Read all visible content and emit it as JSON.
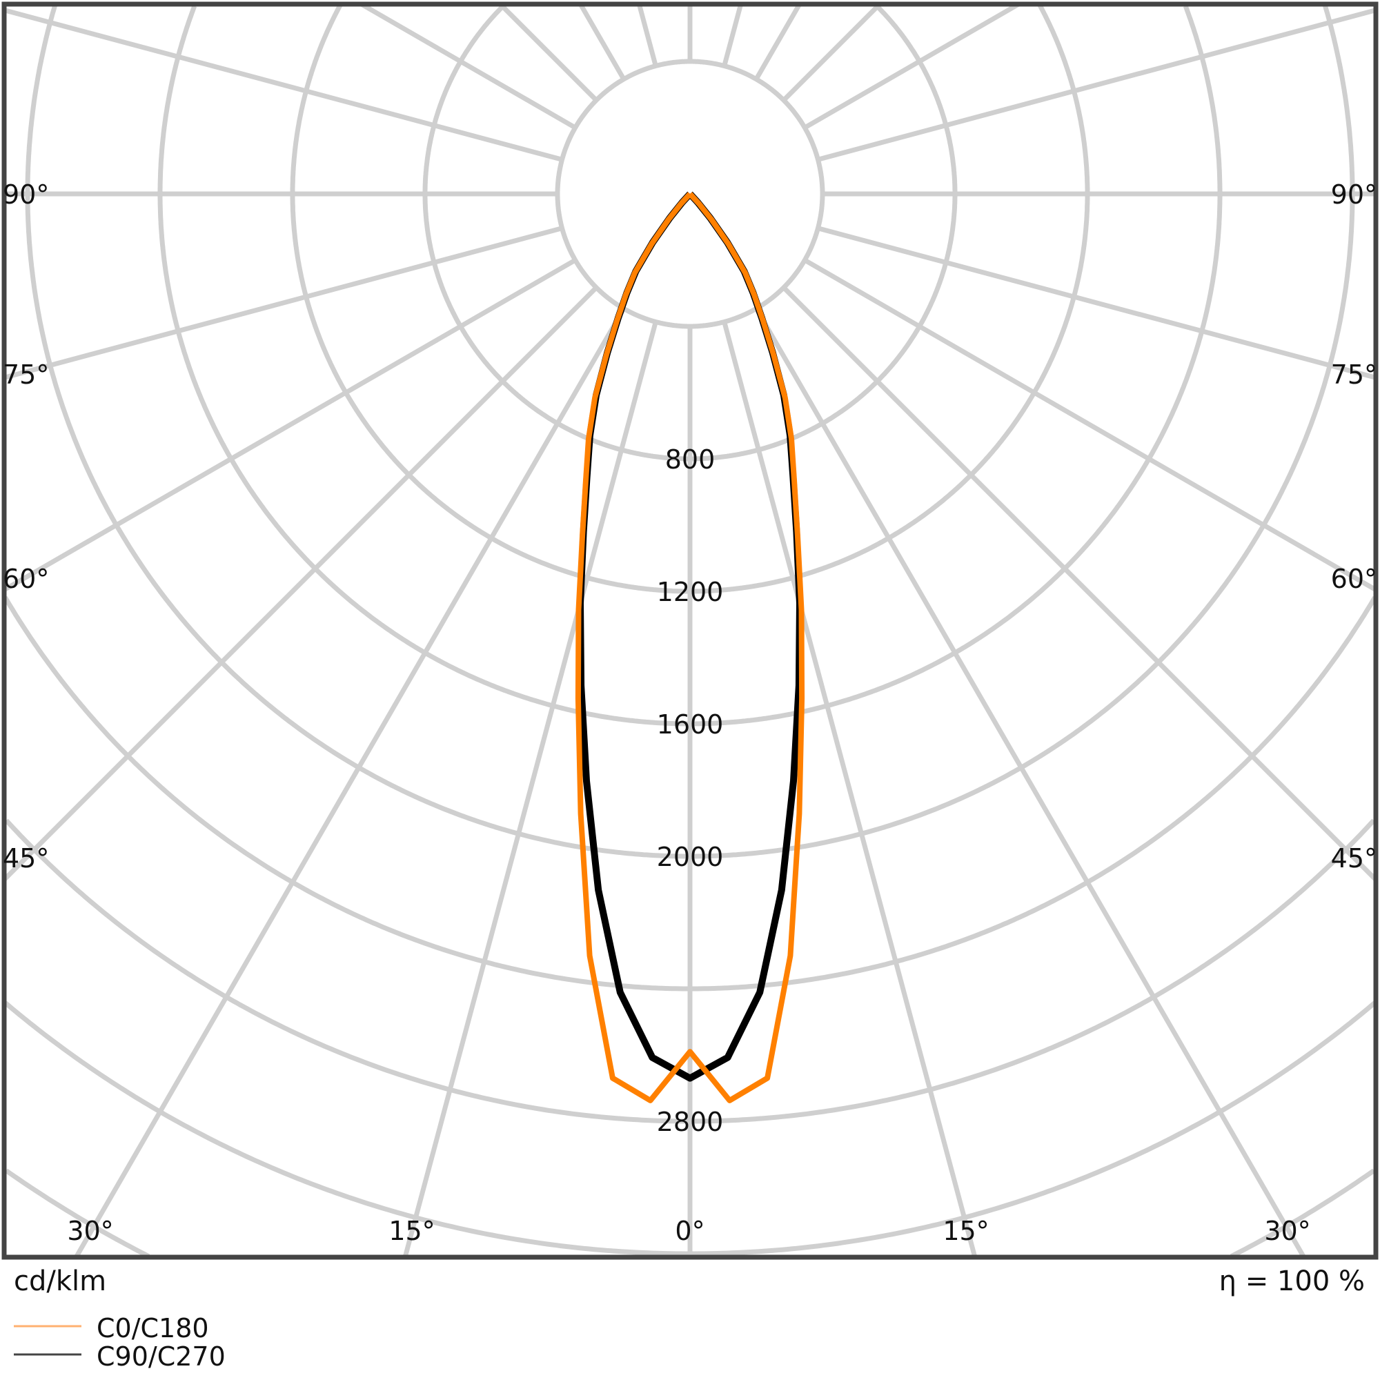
{
  "chart_data": {
    "type": "polar",
    "unit_label": "cd/klm",
    "efficiency_label": "η = 100 %",
    "radial_ticks": [
      400,
      800,
      1200,
      1600,
      2000,
      2400,
      2800,
      3200,
      3600,
      4000,
      4400
    ],
    "radial_tick_labels": [
      "800",
      "1200",
      "1600",
      "2000",
      "2800"
    ],
    "angle_labels_side": [
      "90°",
      "75°",
      "60°",
      "45°"
    ],
    "angle_labels_bottom": [
      "30°",
      "15°",
      "0°",
      "15°",
      "30°"
    ],
    "angle_step_deg": 15,
    "grid": true,
    "legend_position": "bottom-left",
    "angles_deg": [
      0,
      2.5,
      5,
      7.5,
      10,
      12.5,
      15,
      17.5,
      20,
      22.5,
      25,
      27.5,
      30,
      32.5,
      35,
      37.5,
      40,
      42.5,
      45
    ],
    "series": [
      {
        "name": "C0/C180",
        "color": "#ff8000",
        "values": [
          2590,
          2740,
          2680,
          2320,
          1900,
          1560,
          1300,
          1080,
          920,
          800,
          680,
          545,
          440,
          360,
          290,
          190,
          100,
          40,
          0
        ]
      },
      {
        "name": "C90/C270",
        "color": "#000000",
        "values": [
          2670,
          2610,
          2420,
          2120,
          1800,
          1520,
          1280,
          1070,
          910,
          790,
          670,
          540,
          435,
          355,
          285,
          185,
          95,
          35,
          0
        ]
      }
    ],
    "colors": {
      "grid": "#cfcfcf",
      "frame": "#444444"
    }
  }
}
